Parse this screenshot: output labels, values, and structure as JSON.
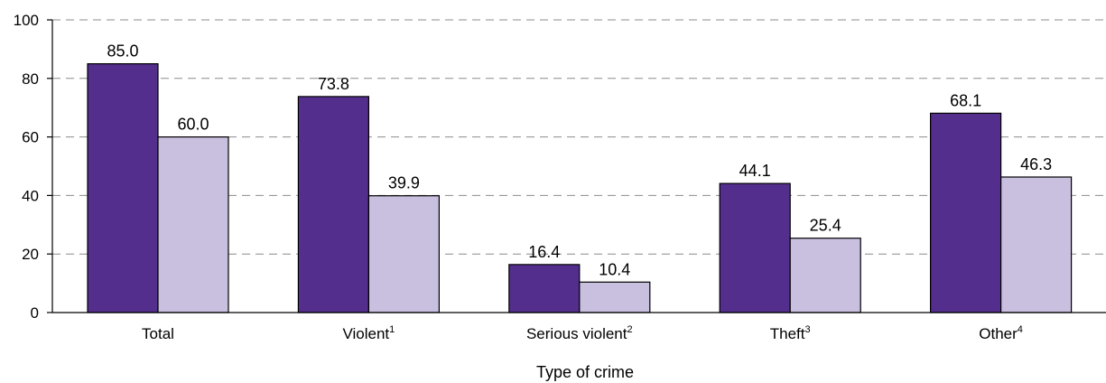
{
  "chart_data": {
    "type": "bar",
    "title": "",
    "xlabel": "Type of crime",
    "ylabel": "",
    "ylim": [
      0,
      100
    ],
    "yticks": [
      0,
      20,
      40,
      60,
      80,
      100
    ],
    "grid": true,
    "categories": [
      {
        "label": "Total",
        "sup": ""
      },
      {
        "label": "Violent",
        "sup": "1"
      },
      {
        "label": "Serious violent",
        "sup": "2"
      },
      {
        "label": "Theft",
        "sup": "3"
      },
      {
        "label": "Other",
        "sup": "4"
      }
    ],
    "series": [
      {
        "color": "#532e8c",
        "values": [
          85.0,
          73.8,
          16.4,
          44.1,
          68.1
        ],
        "labels": [
          "85.0",
          "73.8",
          "16.4",
          "44.1",
          "68.1"
        ]
      },
      {
        "color": "#c9bfde",
        "values": [
          60.0,
          39.9,
          10.4,
          25.4,
          46.3
        ],
        "labels": [
          "60.0",
          "39.9",
          "10.4",
          "25.4",
          "46.3"
        ]
      }
    ]
  }
}
